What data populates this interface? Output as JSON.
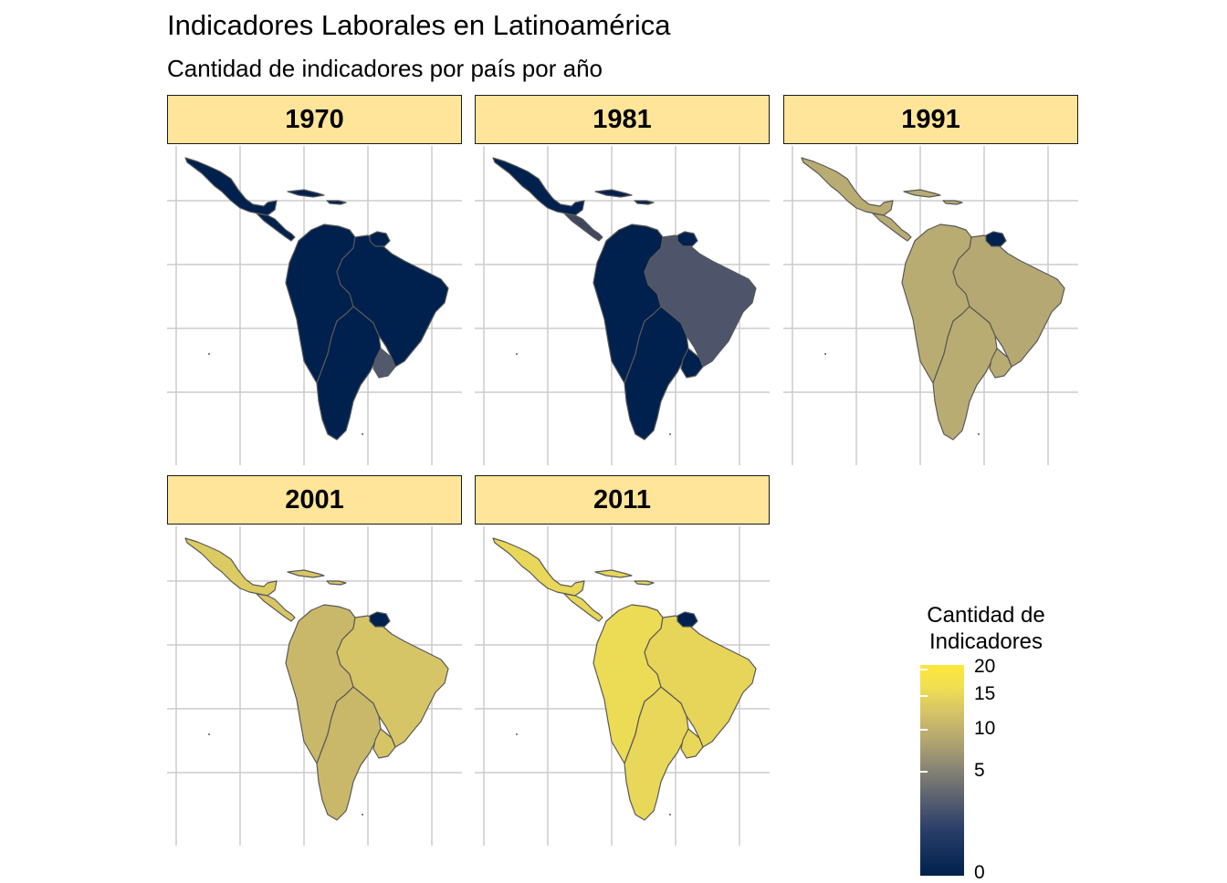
{
  "title": "Indicadores Laborales en Latinoamérica",
  "subtitle": "Cantidad de indicadores por país por año",
  "colors": {
    "strip_fill": "#ffe599",
    "grid": "#cccccc",
    "border": "#595959",
    "scale_low": "#00204d",
    "scale_mid": "#7c7b78",
    "scale_high": "#fee63a"
  },
  "panels": [
    {
      "year": "1970",
      "fills": {
        "mexico": "#00204d",
        "central_america": "#00204d",
        "caribbean": "#00204d",
        "andean": "#00204d",
        "brazil": "#00204d",
        "south": "#00204d",
        "uruguay": "#53596c",
        "guianas": "#00204d"
      }
    },
    {
      "year": "1981",
      "fills": {
        "mexico": "#00204d",
        "central_america": "#40485f",
        "caribbean": "#00204d",
        "andean": "#00204d",
        "brazil": "#4e546a",
        "south": "#00204d",
        "uruguay": "#00204d",
        "guianas": "#00204d"
      }
    },
    {
      "year": "1991",
      "fills": {
        "mexico": "#b9ac72",
        "central_america": "#b9ac72",
        "caribbean": "#b9ac72",
        "andean": "#b9ac72",
        "brazil": "#b5a873",
        "south": "#b9ac72",
        "uruguay": "#b9ac72",
        "guianas": "#00204d"
      }
    },
    {
      "year": "2001",
      "fills": {
        "mexico": "#dccb62",
        "central_america": "#d8c664",
        "caribbean": "#d8c664",
        "andean": "#c9b86a",
        "brazil": "#d6c566",
        "south": "#c9b86a",
        "uruguay": "#d6c566",
        "guianas": "#00204d"
      }
    },
    {
      "year": "2011",
      "fills": {
        "mexico": "#e8d758",
        "central_america": "#e8d758",
        "caribbean": "#e8d758",
        "andean": "#ecdb55",
        "brazil": "#e6d558",
        "south": "#e8d758",
        "uruguay": "#e8d758",
        "guianas": "#00204d"
      }
    }
  ],
  "legend": {
    "title_line1": "Cantidad de",
    "title_line2": "Indicadores",
    "ticks": [
      "20",
      "15",
      "10",
      "5",
      "0"
    ]
  }
}
